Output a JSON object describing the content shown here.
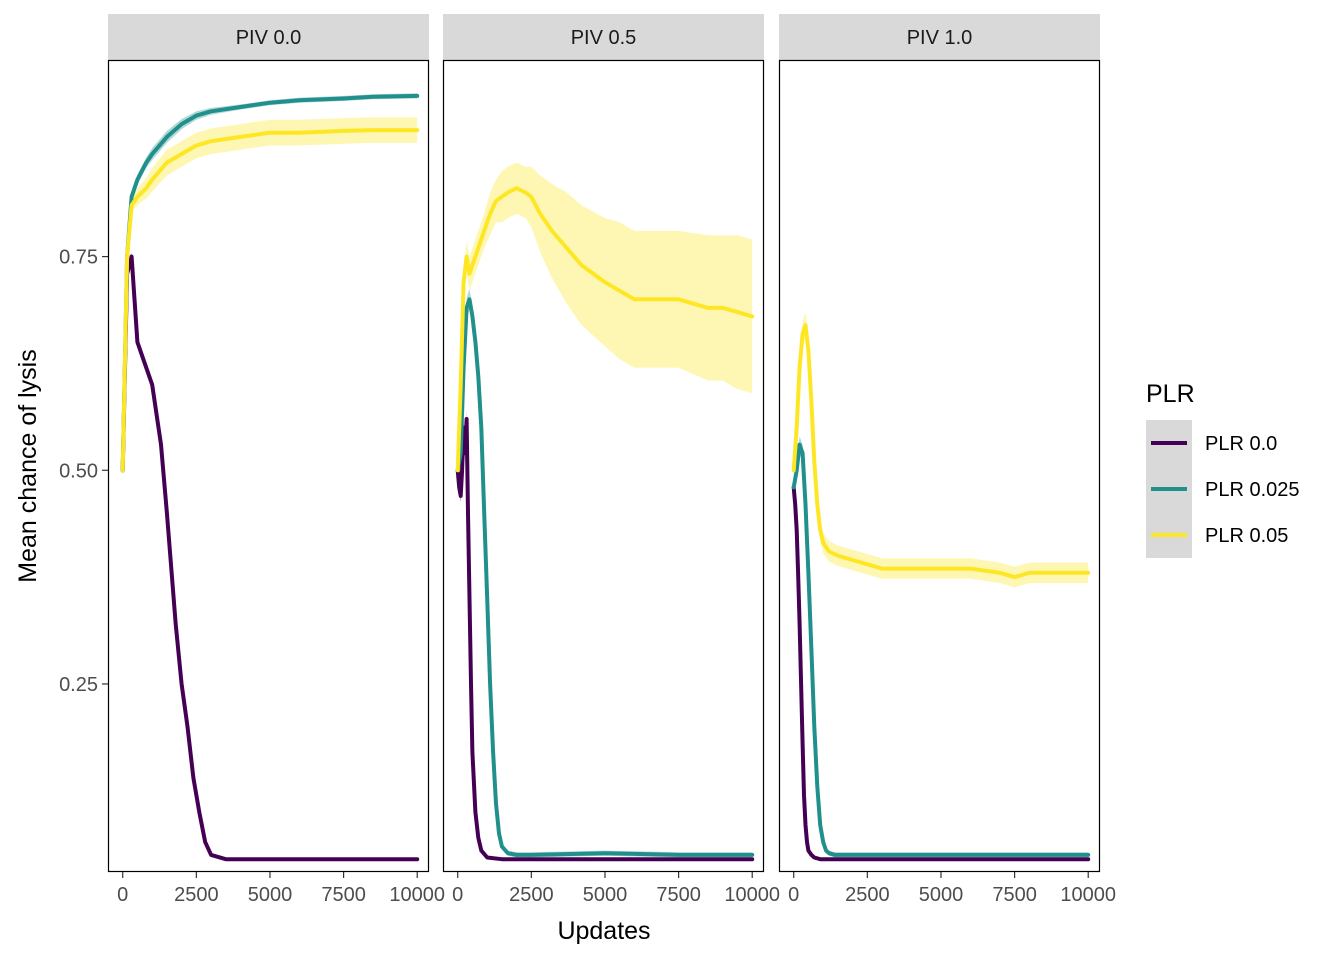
{
  "chart_data": {
    "type": "line",
    "xlabel": "Updates",
    "ylabel": "Mean chance of lysis",
    "xlim": [
      -500,
      10400
    ],
    "ylim": [
      0.03,
      0.98
    ],
    "x_ticks": [
      0,
      2500,
      5000,
      7500,
      10000
    ],
    "x_tick_labels": [
      "0",
      "2500",
      "5000",
      "7500",
      "10000"
    ],
    "y_ticks": [
      0.25,
      0.5,
      0.75
    ],
    "y_tick_labels": [
      "0.25",
      "0.50",
      "0.75"
    ],
    "grid": false,
    "legend": {
      "title": "PLR",
      "placement": "right",
      "entries": [
        "PLR 0.0",
        "PLR 0.025",
        "PLR 0.05"
      ]
    },
    "series_colors": {
      "PLR 0.0": "#440154",
      "PLR 0.025": "#21908C",
      "PLR 0.05": "#FDE725"
    },
    "panels": [
      {
        "label": "PIV 0.0",
        "series": [
          {
            "name": "PLR 0.0",
            "x": [
              0,
              150,
              300,
              400,
              500,
              700,
              1000,
              1300,
              1500,
              1800,
              2000,
              2200,
              2400,
              2600,
              2800,
              3000,
              3500,
              5000,
              7500,
              10000
            ],
            "y": [
              0.5,
              0.73,
              0.75,
              0.7,
              0.65,
              0.63,
              0.6,
              0.53,
              0.45,
              0.32,
              0.25,
              0.2,
              0.14,
              0.1,
              0.065,
              0.05,
              0.045,
              0.045,
              0.045,
              0.045
            ],
            "band": [
              0.003,
              0.005,
              0.005,
              0.005,
              0.005,
              0.005,
              0.005,
              0.006,
              0.006,
              0.008,
              0.01,
              0.01,
              0.008,
              0.006,
              0.004,
              0.002,
              0.002,
              0.002,
              0.002,
              0.002
            ]
          },
          {
            "name": "PLR 0.025",
            "x": [
              0,
              150,
              300,
              500,
              800,
              1000,
              1500,
              2000,
              2500,
              3000,
              4000,
              5000,
              6000,
              7500,
              8500,
              10000
            ],
            "y": [
              0.5,
              0.75,
              0.82,
              0.84,
              0.86,
              0.87,
              0.89,
              0.905,
              0.915,
              0.92,
              0.925,
              0.93,
              0.933,
              0.935,
              0.937,
              0.938
            ],
            "band": [
              0.003,
              0.005,
              0.006,
              0.006,
              0.006,
              0.007,
              0.007,
              0.006,
              0.005,
              0.004,
              0.003,
              0.003,
              0.003,
              0.003,
              0.003,
              0.003
            ]
          },
          {
            "name": "PLR 0.05",
            "x": [
              0,
              150,
              300,
              500,
              800,
              1000,
              1500,
              2000,
              2500,
              3000,
              4000,
              5000,
              6000,
              7500,
              8500,
              10000
            ],
            "y": [
              0.5,
              0.75,
              0.81,
              0.82,
              0.83,
              0.84,
              0.86,
              0.87,
              0.88,
              0.885,
              0.89,
              0.895,
              0.895,
              0.897,
              0.898,
              0.898
            ],
            "band": [
              0.003,
              0.005,
              0.008,
              0.01,
              0.012,
              0.014,
              0.015,
              0.015,
              0.015,
              0.015,
              0.015,
              0.015,
              0.015,
              0.015,
              0.015,
              0.015
            ]
          }
        ]
      },
      {
        "label": "PIV 0.5",
        "series": [
          {
            "name": "PLR 0.0",
            "x": [
              0,
              50,
              100,
              150,
              200,
              250,
              300,
              350,
              400,
              450,
              500,
              600,
              700,
              800,
              1000,
              1500,
              2000,
              5000,
              7500,
              10000
            ],
            "y": [
              0.5,
              0.48,
              0.47,
              0.5,
              0.55,
              0.52,
              0.56,
              0.45,
              0.35,
              0.25,
              0.17,
              0.1,
              0.07,
              0.055,
              0.047,
              0.045,
              0.045,
              0.045,
              0.045,
              0.045
            ],
            "band": [
              0.005,
              0.008,
              0.008,
              0.01,
              0.01,
              0.01,
              0.01,
              0.01,
              0.008,
              0.006,
              0.005,
              0.004,
              0.003,
              0.002,
              0.002,
              0.002,
              0.002,
              0.002,
              0.002,
              0.002
            ]
          },
          {
            "name": "PLR 0.025",
            "x": [
              0,
              100,
              200,
              300,
              400,
              500,
              600,
              700,
              800,
              900,
              1000,
              1100,
              1200,
              1300,
              1400,
              1500,
              1700,
              2000,
              2500,
              5000,
              7500,
              10000
            ],
            "y": [
              0.5,
              0.52,
              0.62,
              0.69,
              0.7,
              0.68,
              0.65,
              0.61,
              0.55,
              0.45,
              0.35,
              0.25,
              0.17,
              0.11,
              0.075,
              0.06,
              0.052,
              0.05,
              0.05,
              0.052,
              0.05,
              0.05
            ],
            "band": [
              0.005,
              0.008,
              0.01,
              0.012,
              0.012,
              0.012,
              0.012,
              0.012,
              0.012,
              0.01,
              0.01,
              0.008,
              0.006,
              0.004,
              0.003,
              0.003,
              0.003,
              0.003,
              0.003,
              0.003,
              0.003,
              0.003
            ]
          },
          {
            "name": "PLR 0.05",
            "x": [
              0,
              100,
              200,
              300,
              400,
              500,
              700,
              900,
              1100,
              1300,
              1500,
              1700,
              2000,
              2300,
              2500,
              2800,
              3200,
              3700,
              4200,
              5000,
              5500,
              6000,
              7000,
              7500,
              8500,
              9000,
              9500,
              10000
            ],
            "y": [
              0.5,
              0.6,
              0.72,
              0.75,
              0.73,
              0.74,
              0.76,
              0.78,
              0.8,
              0.815,
              0.82,
              0.825,
              0.83,
              0.825,
              0.82,
              0.8,
              0.78,
              0.76,
              0.74,
              0.72,
              0.71,
              0.7,
              0.7,
              0.7,
              0.69,
              0.69,
              0.685,
              0.68
            ],
            "band": [
              0.005,
              0.01,
              0.015,
              0.018,
              0.02,
              0.02,
              0.02,
              0.02,
              0.025,
              0.025,
              0.03,
              0.03,
              0.03,
              0.03,
              0.035,
              0.045,
              0.055,
              0.065,
              0.07,
              0.075,
              0.08,
              0.08,
              0.08,
              0.08,
              0.085,
              0.085,
              0.09,
              0.09
            ]
          }
        ]
      },
      {
        "label": "PIV 1.0",
        "series": [
          {
            "name": "PLR 0.0",
            "x": [
              0,
              50,
              100,
              150,
              200,
              250,
              300,
              350,
              400,
              450,
              500,
              600,
              700,
              900,
              1200,
              1500,
              2500,
              5000,
              7500,
              10000
            ],
            "y": [
              0.48,
              0.46,
              0.43,
              0.38,
              0.32,
              0.25,
              0.18,
              0.12,
              0.085,
              0.065,
              0.055,
              0.05,
              0.047,
              0.045,
              0.045,
              0.045,
              0.045,
              0.045,
              0.045,
              0.045
            ],
            "band": [
              0.005,
              0.008,
              0.008,
              0.008,
              0.008,
              0.006,
              0.005,
              0.004,
              0.003,
              0.002,
              0.002,
              0.002,
              0.002,
              0.002,
              0.002,
              0.002,
              0.002,
              0.002,
              0.002,
              0.002
            ]
          },
          {
            "name": "PLR 0.025",
            "x": [
              0,
              100,
              200,
              300,
              400,
              500,
              600,
              700,
              800,
              900,
              1000,
              1100,
              1200,
              1400,
              1700,
              2000,
              3000,
              5000,
              7500,
              10000
            ],
            "y": [
              0.48,
              0.5,
              0.53,
              0.52,
              0.46,
              0.38,
              0.29,
              0.2,
              0.13,
              0.085,
              0.065,
              0.055,
              0.052,
              0.05,
              0.05,
              0.05,
              0.05,
              0.05,
              0.05,
              0.05
            ],
            "band": [
              0.005,
              0.008,
              0.01,
              0.01,
              0.01,
              0.008,
              0.008,
              0.006,
              0.005,
              0.004,
              0.003,
              0.003,
              0.003,
              0.003,
              0.003,
              0.003,
              0.003,
              0.003,
              0.003,
              0.003
            ]
          },
          {
            "name": "PLR 0.05",
            "x": [
              0,
              100,
              200,
              300,
              400,
              500,
              600,
              700,
              800,
              900,
              1000,
              1100,
              1200,
              1500,
              2000,
              2500,
              3000,
              4000,
              5000,
              6000,
              7000,
              7500,
              8000,
              9000,
              10000
            ],
            "y": [
              0.5,
              0.55,
              0.62,
              0.66,
              0.67,
              0.64,
              0.58,
              0.51,
              0.46,
              0.43,
              0.415,
              0.41,
              0.405,
              0.4,
              0.395,
              0.39,
              0.385,
              0.385,
              0.385,
              0.385,
              0.38,
              0.375,
              0.38,
              0.38,
              0.38
            ],
            "band": [
              0.005,
              0.01,
              0.012,
              0.015,
              0.015,
              0.015,
              0.015,
              0.012,
              0.012,
              0.012,
              0.012,
              0.012,
              0.012,
              0.012,
              0.012,
              0.012,
              0.012,
              0.012,
              0.012,
              0.012,
              0.012,
              0.012,
              0.012,
              0.012,
              0.012
            ]
          }
        ]
      }
    ]
  }
}
